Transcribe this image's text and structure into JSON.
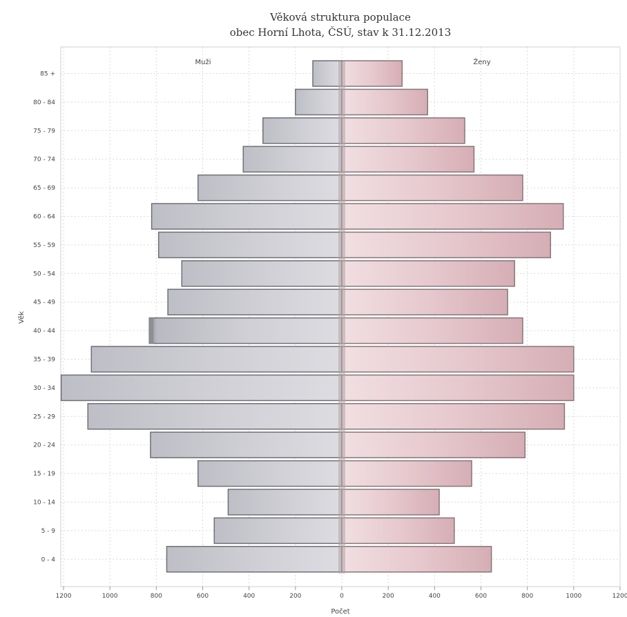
{
  "chart_data": {
    "type": "bar",
    "orientation": "horizontal",
    "subtype": "population-pyramid",
    "title": "Věková struktura populace",
    "subtitle": "obec Horní Lhota, ČSÚ, stav k 31.12.2013",
    "xlabel": "Počet",
    "ylabel": "Věk",
    "xlim": [
      -1200,
      1200
    ],
    "x_tick_values": [
      -1200,
      -1000,
      -800,
      -600,
      -400,
      -200,
      0,
      200,
      400,
      600,
      800,
      1000,
      1200
    ],
    "x_ticks": [
      "1200",
      "1000",
      "800",
      "600",
      "400",
      "200",
      "0",
      "200",
      "400",
      "600",
      "800",
      "1000",
      "1200"
    ],
    "categories": [
      "0 - 4",
      "5 - 9",
      "10 - 14",
      "15 - 19",
      "20 - 24",
      "25 - 29",
      "30 - 34",
      "35 - 39",
      "40 - 44",
      "45 - 49",
      "50 - 54",
      "55 - 59",
      "60 - 64",
      "65 - 69",
      "70 - 74",
      "75 - 79",
      "80 - 84",
      "85 +"
    ],
    "series": [
      {
        "name": "Muži",
        "side": "left",
        "color": "#c5c5cc",
        "values": [
          755,
          550,
          490,
          620,
          825,
          1095,
          1210,
          1080,
          830,
          750,
          690,
          790,
          820,
          620,
          425,
          340,
          200,
          125
        ]
      },
      {
        "name": "Ženy",
        "side": "right",
        "color": "#ddb8bf",
        "values": [
          645,
          485,
          420,
          560,
          790,
          960,
          1000,
          1000,
          780,
          715,
          745,
          900,
          955,
          780,
          570,
          530,
          370,
          260
        ]
      }
    ],
    "highlight": {
      "category": "40 - 44",
      "series": "Muži",
      "color": "#8e8e95"
    },
    "grid": true,
    "legend": "inline-top"
  }
}
